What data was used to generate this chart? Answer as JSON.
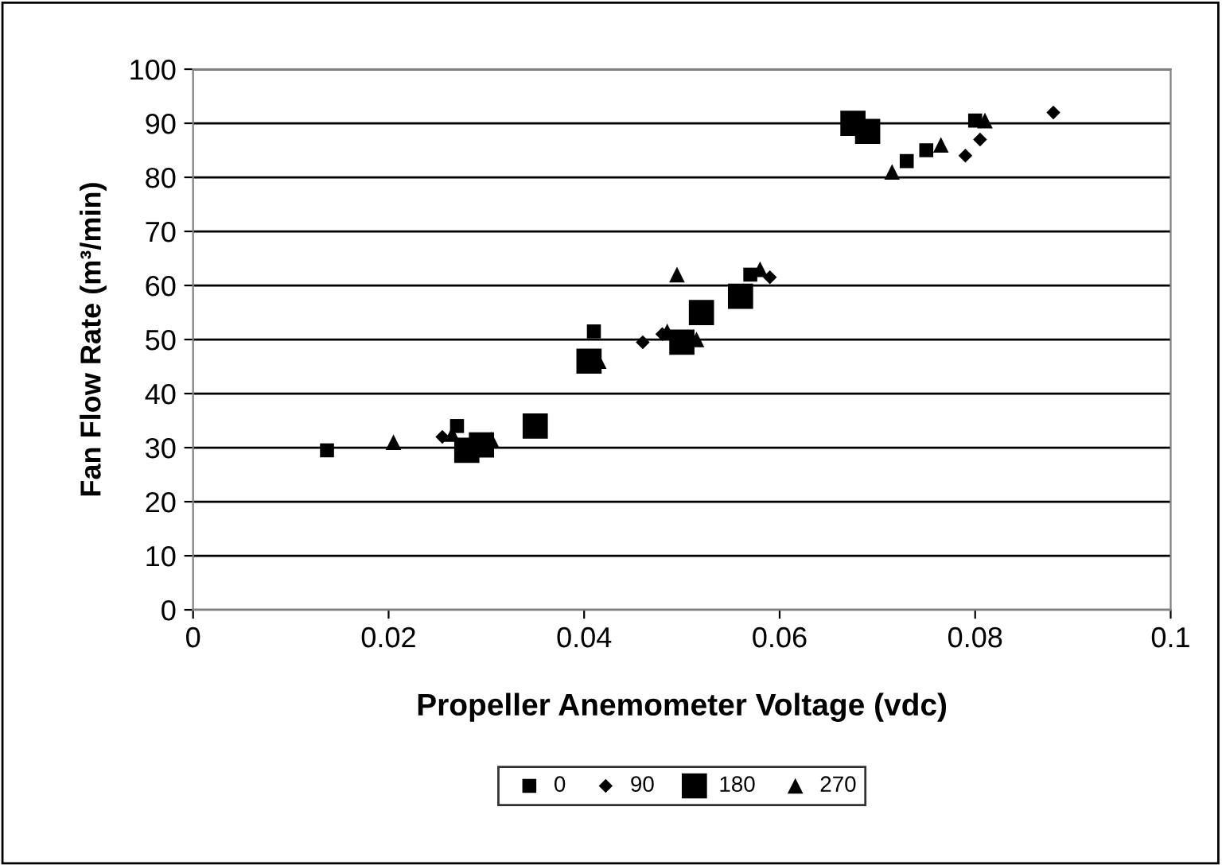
{
  "chart_data": {
    "type": "scatter",
    "xlabel": "Propeller Anemometer Voltage (vdc)",
    "ylabel": "Fan Flow Rate (m³/min)",
    "xlim": [
      0,
      0.1
    ],
    "xticks": [
      0,
      0.02,
      0.04,
      0.06,
      0.08,
      0.1
    ],
    "ylim": [
      0,
      100
    ],
    "yticks": [
      0,
      10,
      20,
      30,
      40,
      50,
      60,
      70,
      80,
      90,
      100
    ],
    "grid": "y",
    "legend": "bottom",
    "series": [
      {
        "name": "0",
        "color": "#000000",
        "marker": "square",
        "x": [
          0.0137,
          0.027,
          0.041,
          0.057,
          0.073,
          0.075,
          0.08
        ],
        "values": [
          29.5,
          34,
          51.5,
          62,
          83,
          85,
          90.5
        ]
      },
      {
        "name": "90",
        "color": "#000000",
        "marker": "diamond",
        "x": [
          0.0255,
          0.0295,
          0.046,
          0.048,
          0.0525,
          0.059,
          0.079,
          0.0805,
          0.088
        ],
        "values": [
          32,
          null,
          49.5,
          51,
          null,
          61.5,
          84,
          87,
          92
        ]
      },
      {
        "name": "180",
        "color": "#000000",
        "marker": "square",
        "x": [
          0.028,
          0.0295,
          0.035,
          0.0405,
          0.05,
          0.052,
          0.056,
          0.0675,
          0.069
        ],
        "values": [
          29.5,
          30.5,
          34,
          46,
          49.5,
          55,
          58,
          90,
          88.5
        ]
      },
      {
        "name": "270",
        "color": "#000000",
        "marker": "triangle",
        "x": [
          0.0205,
          0.0265,
          0.0305,
          0.0415,
          0.0485,
          0.0495,
          0.0515,
          0.058,
          0.0715,
          0.0765,
          0.081
        ],
        "values": [
          31,
          32.5,
          31.5,
          46,
          51.5,
          62,
          50,
          63,
          81,
          86,
          90.5
        ]
      }
    ]
  }
}
